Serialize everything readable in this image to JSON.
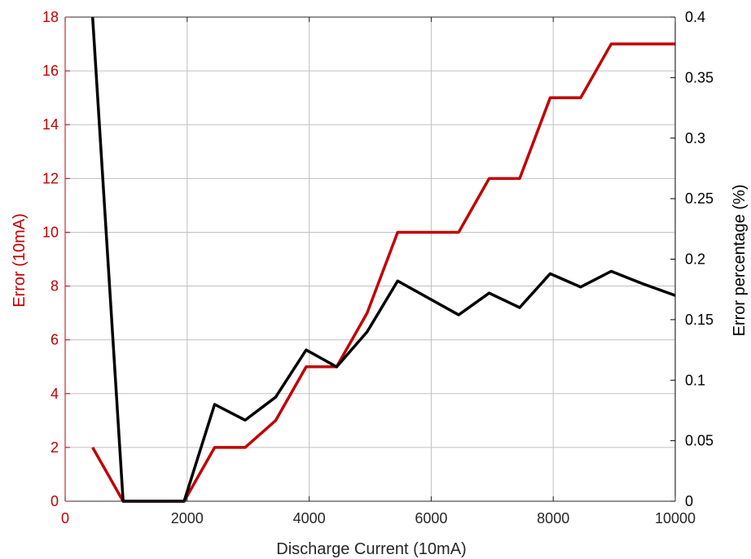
{
  "chart_data": {
    "type": "line",
    "xlabel": "Discharge Current (10mA)",
    "ylabel_left": "Error (10mA)",
    "ylabel_right": "Error percentage (%)",
    "xlim": [
      0,
      10000
    ],
    "ylim_left": [
      0,
      18
    ],
    "ylim_right": [
      0,
      0.4
    ],
    "x_ticks": [
      0,
      2000,
      4000,
      6000,
      8000,
      10000
    ],
    "y_left_ticks": [
      0,
      2,
      4,
      6,
      8,
      10,
      12,
      14,
      16,
      18
    ],
    "y_right_ticks": [
      0,
      0.05,
      0.1,
      0.15,
      0.2,
      0.25,
      0.3,
      0.35,
      0.4
    ],
    "grid": true,
    "colors": {
      "left_axis": "#C00000",
      "right_axis": "#000000",
      "grid": "#c0c0c0"
    },
    "series": [
      {
        "axis": "left",
        "color": "#C00000",
        "x": [
          450,
          950,
          1450,
          1950,
          2450,
          2950,
          3450,
          3950,
          4450,
          4950,
          5450,
          5950,
          6450,
          6950,
          7450,
          7950,
          8450,
          8950,
          9450,
          10000
        ],
        "values": [
          2,
          0,
          0,
          0,
          2,
          2,
          3,
          5,
          5,
          7,
          10,
          10,
          10,
          12,
          12,
          15,
          15,
          17,
          17,
          17
        ]
      },
      {
        "axis": "right",
        "color": "#000000",
        "x": [
          450,
          950,
          1450,
          1950,
          2450,
          2950,
          3450,
          3950,
          4450,
          4950,
          5450,
          5950,
          6450,
          6950,
          7450,
          7950,
          8450,
          8950,
          9450,
          10000
        ],
        "values": [
          0.4,
          0,
          0,
          0,
          0.08,
          0.067,
          0.086,
          0.125,
          0.111,
          0.14,
          0.182,
          0.168,
          0.154,
          0.172,
          0.16,
          0.188,
          0.177,
          0.19,
          0.18,
          0.17
        ]
      }
    ]
  }
}
